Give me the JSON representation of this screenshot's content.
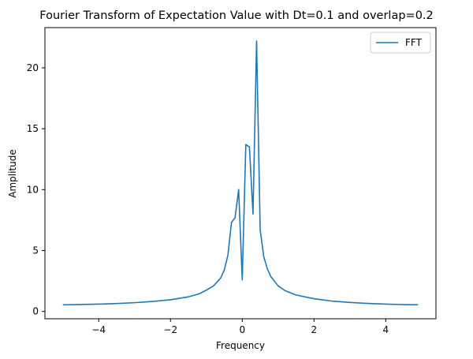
{
  "chart_data": {
    "type": "line",
    "title": "Fourier Transform of Expectation Value with Dt=0.1 and overlap=0.2",
    "xlabel": "Frequency",
    "ylabel": "Amplitude",
    "xlim": [
      -5.5,
      5.4
    ],
    "ylim": [
      -0.6,
      23.3
    ],
    "x_ticks": [
      -4,
      -2,
      0,
      2,
      4
    ],
    "x_tick_labels": [
      "−4",
      "−2",
      "0",
      "2",
      "4"
    ],
    "y_ticks": [
      0,
      5,
      10,
      15,
      20
    ],
    "y_tick_labels": [
      "0",
      "5",
      "10",
      "15",
      "20"
    ],
    "grid": false,
    "legend": {
      "position": "top-right",
      "entries": [
        "FFT"
      ]
    },
    "series": [
      {
        "name": "FFT",
        "color": "#1f77b4",
        "x": [
          -5.0,
          -4.5,
          -4.0,
          -3.5,
          -3.0,
          -2.5,
          -2.0,
          -1.5,
          -1.2,
          -1.0,
          -0.8,
          -0.6,
          -0.5,
          -0.4,
          -0.3,
          -0.2,
          -0.1,
          0.0,
          0.1,
          0.2,
          0.3,
          0.4,
          0.5,
          0.6,
          0.7,
          0.8,
          1.0,
          1.2,
          1.5,
          2.0,
          2.5,
          3.0,
          3.5,
          4.0,
          4.5,
          4.9
        ],
        "y": [
          0.55,
          0.57,
          0.6,
          0.65,
          0.72,
          0.82,
          0.96,
          1.2,
          1.45,
          1.75,
          2.1,
          2.75,
          3.4,
          4.6,
          7.3,
          7.7,
          10.0,
          2.6,
          13.7,
          13.5,
          8.0,
          22.2,
          6.7,
          4.5,
          3.5,
          2.85,
          2.1,
          1.7,
          1.35,
          1.05,
          0.85,
          0.74,
          0.66,
          0.6,
          0.56,
          0.55
        ]
      }
    ]
  }
}
